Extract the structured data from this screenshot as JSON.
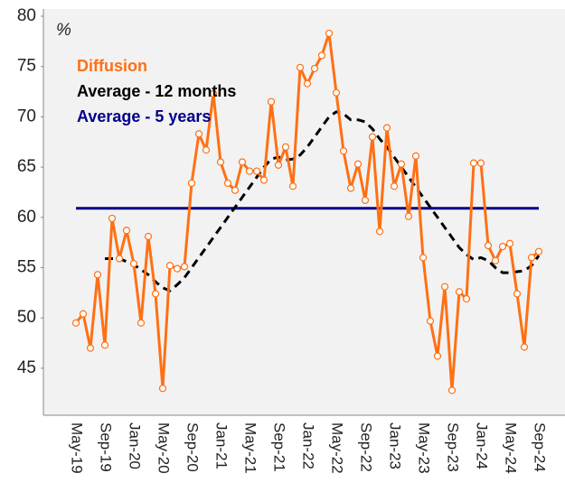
{
  "chart_data": {
    "type": "line",
    "y_label": "%",
    "categories": [
      "May-19",
      null,
      null,
      null,
      "Sep-19",
      null,
      null,
      null,
      "Jan-20",
      null,
      null,
      null,
      "May-20",
      null,
      null,
      null,
      "Sep-20",
      null,
      null,
      null,
      "Jan-21",
      null,
      null,
      null,
      "May-21",
      null,
      null,
      null,
      "Sep-21",
      null,
      null,
      null,
      "Jan-22",
      null,
      null,
      null,
      "May-22",
      null,
      null,
      null,
      "Sep-22",
      null,
      null,
      null,
      "Jan-23",
      null,
      null,
      null,
      "May-23",
      null,
      null,
      null,
      "Sep-23",
      null,
      null,
      null,
      "Jan-24",
      null,
      null,
      null,
      "May-24",
      null,
      null,
      null,
      "Sep-24"
    ],
    "series": [
      {
        "name": "Diffusion",
        "color": "#ff7014",
        "markers": true,
        "values": [
          49.5,
          50.4,
          47.0,
          54.3,
          47.3,
          59.9,
          55.9,
          58.7,
          55.4,
          49.5,
          58.1,
          52.4,
          43.0,
          55.2,
          54.9,
          55.1,
          63.4,
          68.3,
          66.7,
          72.3,
          65.5,
          63.4,
          62.7,
          65.5,
          64.6,
          64.6,
          63.7,
          71.5,
          65.2,
          67.0,
          63.1,
          74.9,
          73.3,
          74.8,
          76.1,
          78.3,
          72.4,
          66.6,
          62.9,
          65.3,
          61.7,
          68.0,
          58.6,
          68.9,
          63.1,
          65.3,
          60.1,
          66.1,
          56.0,
          49.7,
          46.2,
          53.1,
          42.8,
          52.6,
          51.9,
          65.4,
          65.4,
          57.2,
          55.7,
          57.1,
          57.4,
          52.4,
          47.1,
          56.0,
          56.6
        ]
      },
      {
        "name": "Average - 12 months",
        "color": "#000000",
        "dashed": true,
        "values": [
          null,
          null,
          null,
          null,
          55.9,
          55.9,
          55.9,
          55.6,
          55.3,
          54.8,
          54.3,
          53.6,
          53.0,
          52.7,
          53.3,
          54.0,
          55.0,
          56.0,
          57.0,
          58.0,
          59.0,
          60.0,
          61.0,
          62.0,
          63.0,
          64.0,
          65.0,
          65.8,
          66.0,
          65.7,
          65.8,
          66.2,
          67.0,
          68.0,
          69.0,
          70.0,
          70.5,
          70.3,
          69.7,
          69.7,
          69.5,
          68.8,
          67.8,
          67.0,
          66.0,
          65.0,
          64.0,
          63.0,
          62.0,
          61.0,
          60.0,
          59.0,
          58.0,
          57.0,
          56.3,
          55.8,
          56.0,
          55.7,
          55.0,
          54.5,
          54.5,
          54.6,
          54.7,
          55.2,
          56.2
        ]
      },
      {
        "name": "Average - 5 years",
        "color": "#00008b",
        "values": [
          60.9,
          60.9,
          60.9,
          60.9,
          60.9,
          60.9,
          60.9,
          60.9,
          60.9,
          60.9,
          60.9,
          60.9,
          60.9,
          60.9,
          60.9,
          60.9,
          60.9,
          60.9,
          60.9,
          60.9,
          60.9,
          60.9,
          60.9,
          60.9,
          60.9,
          60.9,
          60.9,
          60.9,
          60.9,
          60.9,
          60.9,
          60.9,
          60.9,
          60.9,
          60.9,
          60.9,
          60.9,
          60.9,
          60.9,
          60.9,
          60.9,
          60.9,
          60.9,
          60.9,
          60.9,
          60.9,
          60.9,
          60.9,
          60.9,
          60.9,
          60.9,
          60.9,
          60.9,
          60.9,
          60.9,
          60.9,
          60.9,
          60.9,
          60.9,
          60.9,
          60.9,
          60.9,
          60.9,
          60.9,
          60.9
        ]
      }
    ],
    "ylim": [
      40,
      80
    ],
    "yticks": [
      45,
      50,
      55,
      60,
      65,
      70,
      75,
      80
    ]
  }
}
